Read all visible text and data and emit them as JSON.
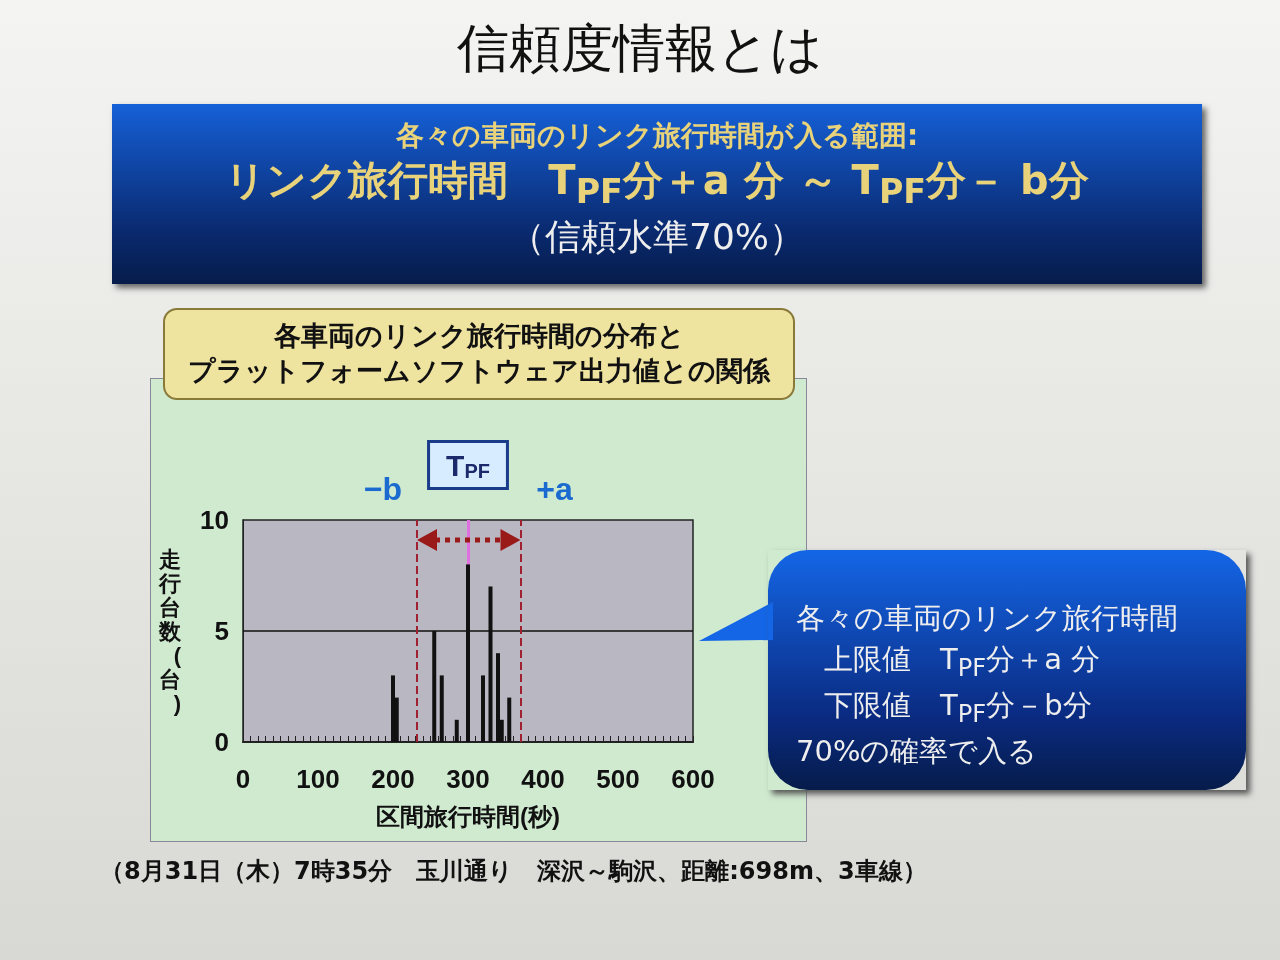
{
  "chart_data": {
    "type": "bar",
    "title": "信頼度情報とは",
    "subtitle": "各々の車両のリンク旅行時間が入る範囲:",
    "xlabel": "区間旅行時間(秒)",
    "ylabel": "走行台数(台)",
    "x": [
      200,
      205,
      255,
      265,
      285,
      300,
      320,
      330,
      340,
      345,
      355
    ],
    "values": [
      3,
      2,
      5,
      3,
      1,
      8,
      3,
      7,
      4,
      1,
      2
    ],
    "color": "#111111",
    "xlim": [
      0,
      600
    ],
    "xticks": [
      0,
      100,
      200,
      300,
      400,
      500,
      600
    ],
    "ylim": [
      0,
      10
    ],
    "yticks": [
      0,
      5,
      10
    ],
    "ref_lines": [
      {
        "axis": "y",
        "value": 5,
        "color": "#111111",
        "line_style": "solid"
      },
      {
        "axis": "x",
        "value": 300,
        "label": "T$_{PF}$",
        "color": "#e070e0",
        "line_style": "solid"
      },
      {
        "axis": "x",
        "value": 232,
        "label": "−b",
        "color": "#a02030",
        "line_style": "dashed"
      },
      {
        "axis": "x",
        "value": 370,
        "label": "+a",
        "color": "#a02030",
        "line_style": "dashed"
      }
    ],
    "annotations": [
      "リンク旅行時間　T$_{PF}$分＋a 分 ～ T$_{PF}$分－ b分",
      "（信頼水準70%）",
      "各車両のリンク旅行時間の分布と",
      "プラットフォームソフトウェア出力値との関係",
      "各々の車両のリンク旅行時間",
      "上限値　T$_{PF}$分＋a 分",
      "下限値　T$_{PF}$分－b分",
      "70%の確率で入る",
      "（8月31日（木）7時35分　玉川通り　深沢～駒沢、距離:698m、3車線）"
    ]
  }
}
